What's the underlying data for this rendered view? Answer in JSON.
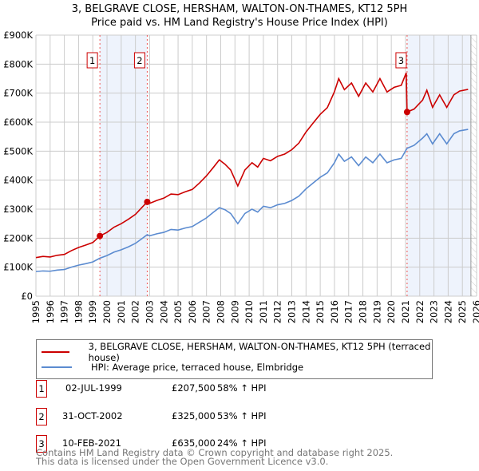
{
  "title": "3, BELGRAVE CLOSE, HERSHAM, WALTON-ON-THAMES, KT12 5PH",
  "subtitle": "Price paid vs. HM Land Registry's House Price Index (HPI)",
  "chart_data": {
    "type": "line",
    "title": "3, BELGRAVE CLOSE, HERSHAM, WALTON-ON-THAMES, KT12 5PH",
    "xlim": [
      1995,
      2026
    ],
    "ylim": [
      0,
      900000
    ],
    "ytick_labels": [
      "£0",
      "£100K",
      "£200K",
      "£300K",
      "£400K",
      "£500K",
      "£600K",
      "£700K",
      "£800K",
      "£900K"
    ],
    "xtick_labels": [
      "1995",
      "1996",
      "1997",
      "1998",
      "1999",
      "2000",
      "2001",
      "2002",
      "2003",
      "2004",
      "2005",
      "2006",
      "2007",
      "2008",
      "2009",
      "2010",
      "2011",
      "2012",
      "2013",
      "2014",
      "2015",
      "2016",
      "2017",
      "2018",
      "2019",
      "2020",
      "2021",
      "2022",
      "2023",
      "2024",
      "2025",
      "2026"
    ],
    "grid": true,
    "colors": {
      "property": "#cc0000",
      "hpi": "#5b8bd0",
      "shade": "#eef3fc"
    },
    "series": [
      {
        "name": "3, BELGRAVE CLOSE, HERSHAM, WALTON-ON-THAMES, KT12 5PH (terraced house)",
        "x": [
          1995,
          1995.5,
          1996,
          1996.5,
          1997,
          1997.5,
          1998,
          1998.5,
          1999,
          1999.5,
          2000,
          2000.5,
          2001,
          2001.5,
          2002,
          2002.5,
          2002.83,
          2003,
          2003.5,
          2004,
          2004.5,
          2005,
          2005.5,
          2006,
          2006.5,
          2007,
          2007.5,
          2007.9,
          2008.3,
          2008.7,
          2009.2,
          2009.7,
          2010.2,
          2010.6,
          2011,
          2011.5,
          2012,
          2012.5,
          2013,
          2013.5,
          2014,
          2014.5,
          2015,
          2015.5,
          2016,
          2016.3,
          2016.7,
          2017.2,
          2017.7,
          2018.2,
          2018.7,
          2019.2,
          2019.7,
          2020.2,
          2020.7,
          2021.05,
          2021.11,
          2021.6,
          2022.2,
          2022.5,
          2022.9,
          2023.4,
          2023.9,
          2024.4,
          2024.8,
          2025.4
        ],
        "y": [
          133,
          137,
          135,
          141,
          144,
          157,
          168,
          176,
          185,
          207.5,
          220,
          238,
          250,
          265,
          282,
          308,
          325,
          320,
          330,
          338,
          352,
          350,
          360,
          368,
          390,
          415,
          445,
          470,
          455,
          435,
          380,
          435,
          460,
          445,
          475,
          467,
          482,
          490,
          505,
          528,
          566,
          597,
          627,
          650,
          705,
          750,
          712,
          735,
          689,
          735,
          704,
          750,
          704,
          720,
          727,
          770,
          635,
          645,
          676,
          710,
          651,
          694,
          651,
          694,
          707,
          713
        ]
      },
      {
        "name": "HPI: Average price, terraced house, Elmbridge",
        "x": [
          1995,
          1995.5,
          1996,
          1996.5,
          1997,
          1997.5,
          1998,
          1998.5,
          1999,
          1999.5,
          2000,
          2000.5,
          2001,
          2001.5,
          2002,
          2002.5,
          2002.83,
          2003,
          2003.5,
          2004,
          2004.5,
          2005,
          2005.5,
          2006,
          2006.5,
          2007,
          2007.5,
          2007.9,
          2008.3,
          2008.7,
          2009.2,
          2009.7,
          2010.2,
          2010.6,
          2011,
          2011.5,
          2012,
          2012.5,
          2013,
          2013.5,
          2014,
          2014.5,
          2015,
          2015.5,
          2016,
          2016.3,
          2016.7,
          2017.2,
          2017.7,
          2018.2,
          2018.7,
          2019.2,
          2019.7,
          2020.2,
          2020.7,
          2021.05,
          2021.11,
          2021.6,
          2022.2,
          2022.5,
          2022.9,
          2023.4,
          2023.9,
          2024.4,
          2024.8,
          2025.4
        ],
        "y": [
          85,
          87,
          86,
          90,
          92,
          100,
          107,
          112,
          118,
          131,
          140,
          152,
          160,
          170,
          182,
          200,
          212,
          208,
          215,
          220,
          230,
          228,
          235,
          240,
          255,
          270,
          290,
          305,
          298,
          285,
          250,
          285,
          300,
          290,
          310,
          305,
          315,
          320,
          330,
          345,
          370,
          390,
          410,
          425,
          460,
          490,
          465,
          480,
          450,
          480,
          460,
          490,
          460,
          470,
          475,
          505,
          510,
          520,
          545,
          560,
          525,
          560,
          525,
          560,
          570,
          575
        ]
      }
    ],
    "y_unit": "thousands GBP",
    "sales": [
      {
        "label": "1",
        "x": 1999.5,
        "y": 207.5
      },
      {
        "label": "2",
        "x": 2002.83,
        "y": 325
      },
      {
        "label": "3",
        "x": 2021.11,
        "y": 635
      }
    ]
  },
  "legend": {
    "property": "3, BELGRAVE CLOSE, HERSHAM, WALTON-ON-THAMES, KT12 5PH (terraced house)",
    "hpi": "HPI: Average price, terraced house, Elmbridge"
  },
  "transactions": [
    {
      "num": "1",
      "date": "02-JUL-1999",
      "price": "£207,500",
      "hpi": "58% ↑ HPI"
    },
    {
      "num": "2",
      "date": "31-OCT-2002",
      "price": "£325,000",
      "hpi": "53% ↑ HPI"
    },
    {
      "num": "3",
      "date": "10-FEB-2021",
      "price": "£635,000",
      "hpi": "24% ↑ HPI"
    }
  ],
  "footer": [
    "Contains HM Land Registry data © Crown copyright and database right 2025.",
    "This data is licensed under the Open Government Licence v3.0."
  ]
}
